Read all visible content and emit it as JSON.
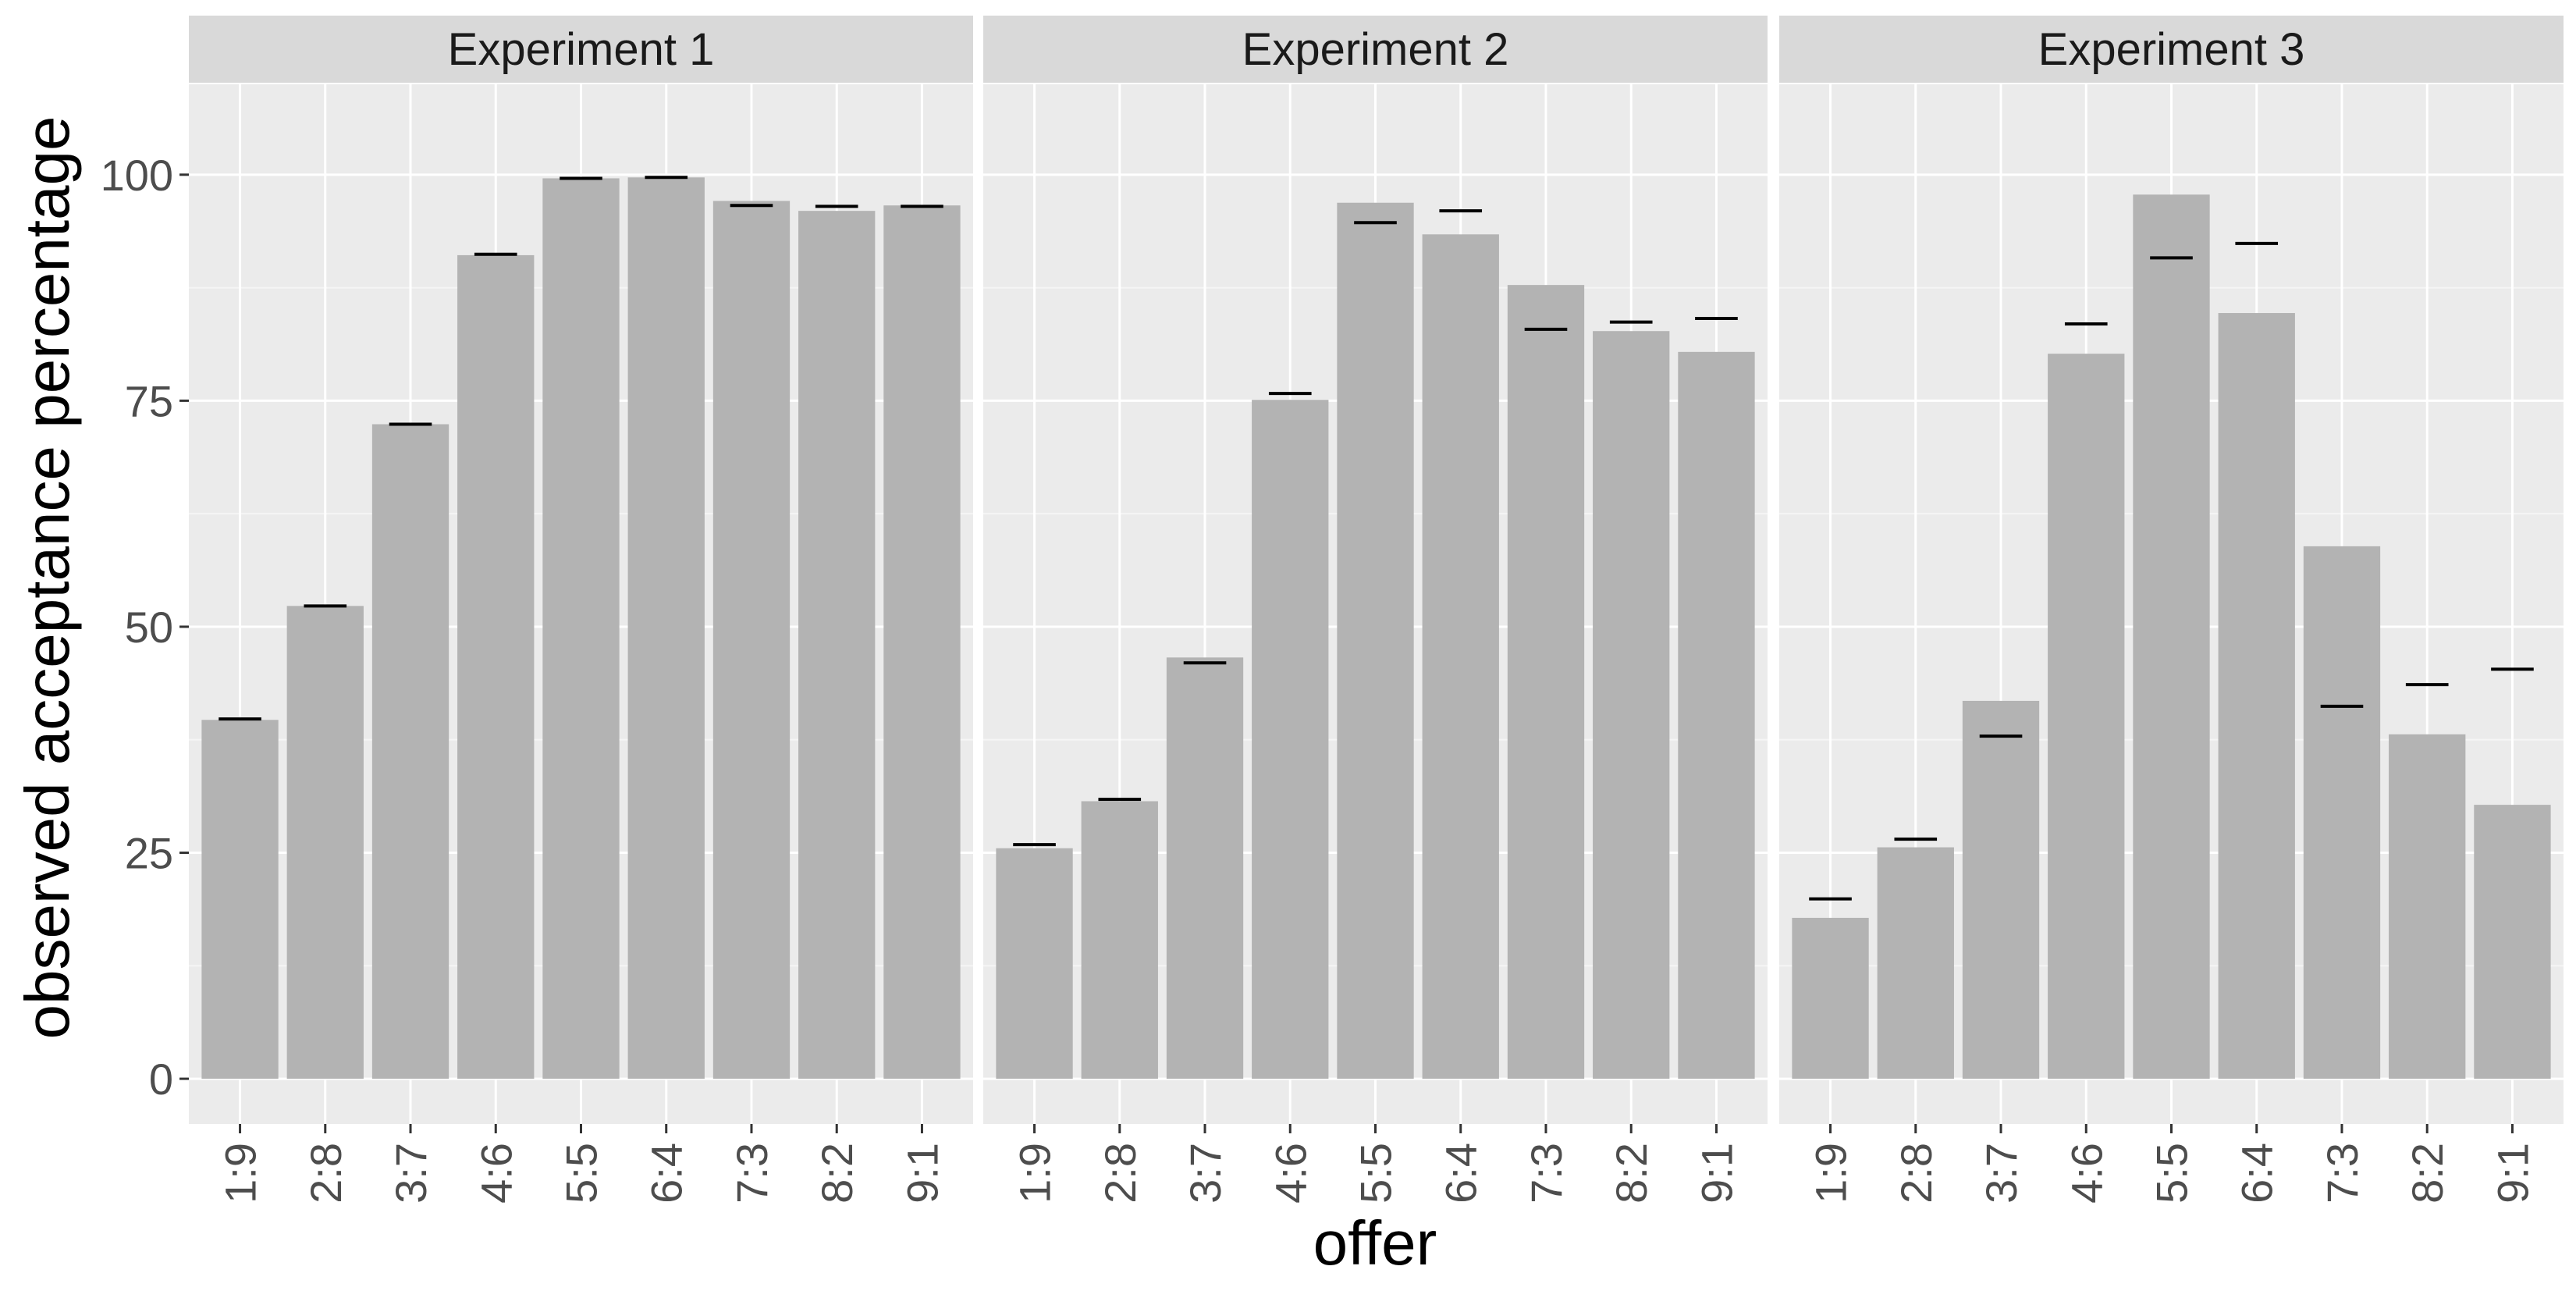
{
  "chart_data": {
    "type": "bar",
    "xlabel": "offer",
    "ylabel": "observed acceptance percentage",
    "ylim": [
      -5,
      110
    ],
    "yticks": [
      0,
      25,
      50,
      75,
      100
    ],
    "categories": [
      "1:9",
      "2:8",
      "3:7",
      "4:6",
      "5:5",
      "6:4",
      "7:3",
      "8:2",
      "9:1"
    ],
    "grid": true,
    "legend": "none",
    "colors": {
      "bar": "#b3b3b3",
      "panel": "#ebebeb",
      "strip": "#d9d9d9",
      "grid_major": "#ffffff",
      "marker": "#000000"
    },
    "panels": [
      {
        "title": "Experiment 1",
        "values": [
          39.7,
          52.3,
          72.4,
          91.1,
          99.6,
          99.7,
          97.1,
          96.0,
          96.6
        ],
        "markers": [
          39.8,
          52.3,
          72.4,
          91.2,
          99.6,
          99.7,
          96.6,
          96.5,
          96.5
        ]
      },
      {
        "title": "Experiment 2",
        "values": [
          25.5,
          30.7,
          46.6,
          75.1,
          96.9,
          93.4,
          87.8,
          82.7,
          80.4
        ],
        "markers": [
          25.9,
          30.9,
          46.0,
          75.8,
          94.7,
          96.0,
          82.9,
          83.7,
          84.1
        ]
      },
      {
        "title": "Experiment 3",
        "values": [
          17.8,
          25.6,
          41.8,
          80.2,
          97.8,
          84.7,
          58.9,
          38.1,
          30.3
        ],
        "markers": [
          19.9,
          26.5,
          37.9,
          83.5,
          90.8,
          92.4,
          41.2,
          43.6,
          45.3
        ]
      }
    ]
  }
}
